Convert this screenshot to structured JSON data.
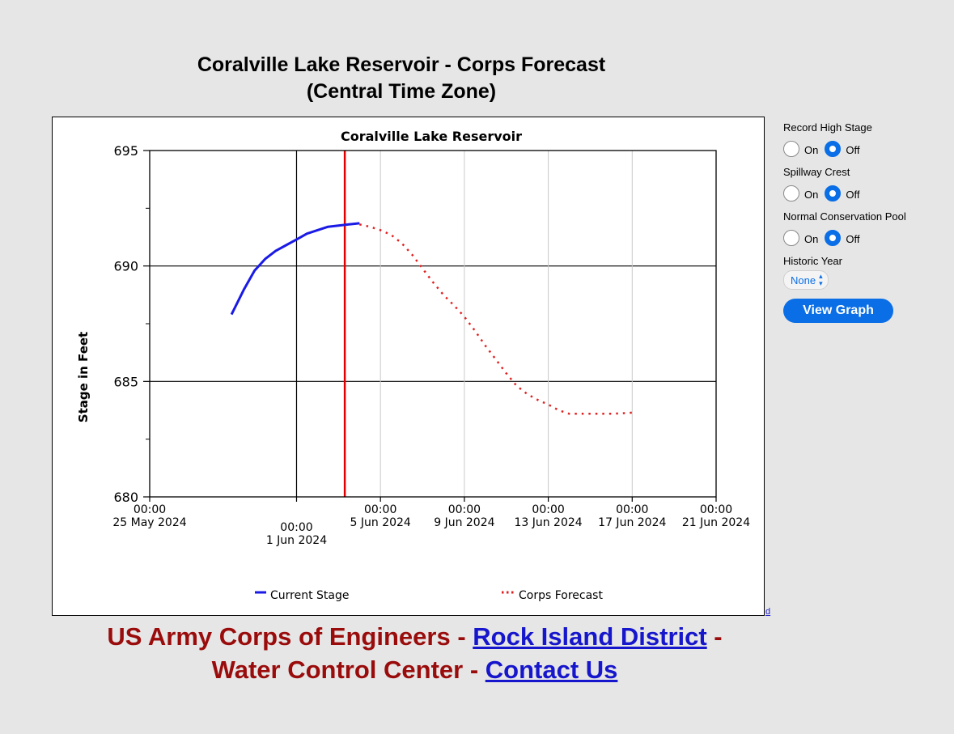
{
  "page": {
    "title_line1": "Coralville Lake Reservoir - Corps Forecast",
    "title_line2": "(Central Time Zone)"
  },
  "chart_data": {
    "type": "line",
    "title": "Coralville Lake Reservoir",
    "ylabel": "Stage in Feet",
    "xlabel": "",
    "ylim": [
      680,
      695
    ],
    "yticks": [
      680,
      685,
      690,
      695
    ],
    "xlim": [
      "2024-05-25T00:00",
      "2024-06-21T00:00"
    ],
    "xticks": [
      {
        "day": 0,
        "time": "00:00",
        "date": "25 May 2024",
        "grid": "none"
      },
      {
        "day": 7,
        "time": "00:00",
        "date": "1 Jun 2024",
        "grid": "major"
      },
      {
        "day": 11,
        "time": "00:00",
        "date": "5 Jun 2024",
        "grid": "minor"
      },
      {
        "day": 15,
        "time": "00:00",
        "date": "9 Jun 2024",
        "grid": "minor"
      },
      {
        "day": 19,
        "time": "00:00",
        "date": "13 Jun 2024",
        "grid": "minor"
      },
      {
        "day": 23,
        "time": "00:00",
        "date": "17 Jun 2024",
        "grid": "minor"
      },
      {
        "day": 27,
        "time": "00:00",
        "date": "21 Jun 2024",
        "grid": "none"
      }
    ],
    "current_time_day": 9.3,
    "series": [
      {
        "name": "Current Stage",
        "style": "solid",
        "color": "#1a1ae6",
        "x": [
          3.9,
          4.5,
          5.0,
          5.5,
          6.0,
          6.5,
          7.0,
          7.5,
          8.0,
          8.5,
          9.0,
          9.5,
          10.0
        ],
        "values": [
          687.9,
          689.0,
          689.8,
          690.3,
          690.65,
          690.9,
          691.15,
          691.4,
          691.55,
          691.7,
          691.75,
          691.8,
          691.85
        ]
      },
      {
        "name": "Corps Forecast",
        "style": "dotted",
        "color": "#e02020",
        "x": [
          10.0,
          10.5,
          11.0,
          11.5,
          12.0,
          12.5,
          13.0,
          13.5,
          14.0,
          14.5,
          15.0,
          15.5,
          16.0,
          16.5,
          17.0,
          17.5,
          18.0,
          18.5,
          19.0,
          19.5,
          20.0,
          20.5,
          21.0,
          21.5,
          22.0,
          22.5,
          23.0
        ],
        "values": [
          691.8,
          691.7,
          691.55,
          691.35,
          691.0,
          690.5,
          689.9,
          689.3,
          688.75,
          688.3,
          687.8,
          687.2,
          686.55,
          685.95,
          685.35,
          684.8,
          684.45,
          684.2,
          684.0,
          683.75,
          683.6,
          683.6,
          683.6,
          683.6,
          683.6,
          683.62,
          683.65
        ]
      }
    ]
  },
  "controls": {
    "groups": [
      {
        "label": "Record High Stage",
        "on_label": "On",
        "off_label": "Off",
        "selected": "off"
      },
      {
        "label": "Spillway Crest",
        "on_label": "On",
        "off_label": "Off",
        "selected": "off"
      },
      {
        "label": "Normal Conservation Pool",
        "on_label": "On",
        "off_label": "Off",
        "selected": "off"
      }
    ],
    "historic_year_label": "Historic Year",
    "historic_year_value": "None",
    "view_graph_label": "View Graph"
  },
  "tiny_link": "d",
  "footer": {
    "part1": "US Army Corps of Engineers - ",
    "link1": "Rock Island District",
    "part2": " -",
    "part3": "Water Control Center - ",
    "link2": "Contact Us"
  },
  "colors": {
    "footer_text": "#9a0c0c",
    "link": "#1616cc",
    "accent": "#0a6ee6",
    "current_time_line": "#e00000"
  }
}
